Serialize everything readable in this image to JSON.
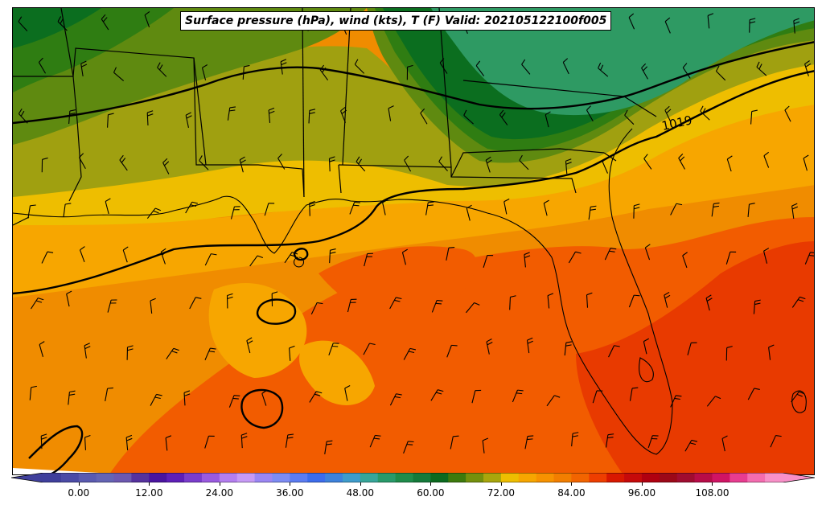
{
  "title": "Surface pressure (hPa), wind (kts), T (F) Valid: 202105122100f005",
  "map": {
    "isobar_labels": [
      {
        "text": "1019"
      }
    ],
    "temperature_colors": {
      "cold_green": "#2e9a63",
      "dark_green": "#0b6e1f",
      "mid_green": "#2f7d12",
      "olive": "#5f8a10",
      "olive_yellow": "#a0a010",
      "yellow": "#eebe00",
      "light_orange": "#f7a600",
      "orange": "#f08c00",
      "dark_orange": "#f25c00",
      "red_orange": "#e83a00"
    }
  },
  "colorbar": {
    "min": -6,
    "max": 120,
    "step": 3,
    "tick_labels": [
      "0.00",
      "12.00",
      "24.00",
      "36.00",
      "48.00",
      "60.00",
      "72.00",
      "84.00",
      "96.00",
      "108.00"
    ],
    "tick_values": [
      0,
      12,
      24,
      36,
      48,
      60,
      72,
      84,
      96,
      108
    ],
    "colors": [
      "#3f3f9c",
      "#4b4ba6",
      "#5a5ab0",
      "#6464b4",
      "#6c58b0",
      "#56329e",
      "#4a14a0",
      "#5e1fb8",
      "#7a3ccc",
      "#9a5ae0",
      "#b47ef0",
      "#c79af6",
      "#9b86f4",
      "#7d8cf4",
      "#5b7cf2",
      "#3c6cec",
      "#3d82dc",
      "#3e9ccc",
      "#36a69a",
      "#289a6a",
      "#1e8c4a",
      "#147a3a",
      "#0b6a1f",
      "#3d7a0c",
      "#74900c",
      "#a8a60c",
      "#eebe00",
      "#f7a600",
      "#f79200",
      "#f27e00",
      "#f26400",
      "#ee3e00",
      "#d81800",
      "#c60a0a",
      "#b00010",
      "#9c0818",
      "#a00c30",
      "#b80c48",
      "#d01464",
      "#e83c90",
      "#f46cb0",
      "#f890c8"
    ]
  }
}
